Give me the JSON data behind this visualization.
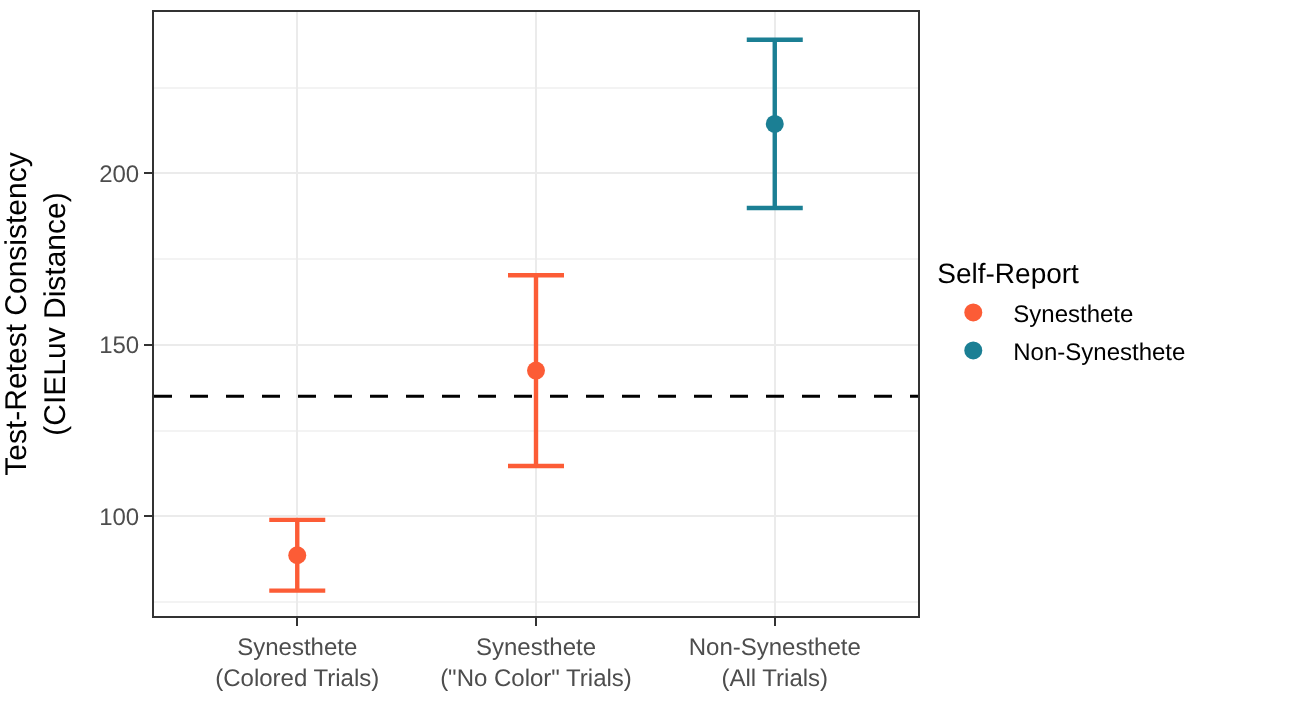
{
  "chart_data": {
    "type": "scatter",
    "ylabel": "Test-Retest Consistency\n(CIELuv Distance)",
    "legend_title": "Self-Report",
    "categories": [
      "Synesthete\n(Colored Trials)",
      "Synesthete\n(\"No Color\" Trials)",
      "Non-Synesthete\n(All Trials)"
    ],
    "series": [
      {
        "name": "Synesthete",
        "color": "#fc5c36",
        "values": [
          88.7,
          142.5,
          null
        ],
        "errors": [
          10.3,
          27.8,
          null
        ]
      },
      {
        "name": "Non-Synesthete",
        "color": "#1b7f94",
        "values": [
          null,
          null,
          214.4
        ],
        "errors": [
          null,
          null,
          24.5
        ]
      }
    ],
    "ylim": [
      71,
      247
    ],
    "yticks": [
      100,
      150,
      200
    ],
    "grid": true,
    "legend": "right",
    "marker": "circle",
    "ref_lines": [
      {
        "axis": "y",
        "value": 135,
        "line_style": "dashed",
        "color": "#000000"
      }
    ]
  }
}
